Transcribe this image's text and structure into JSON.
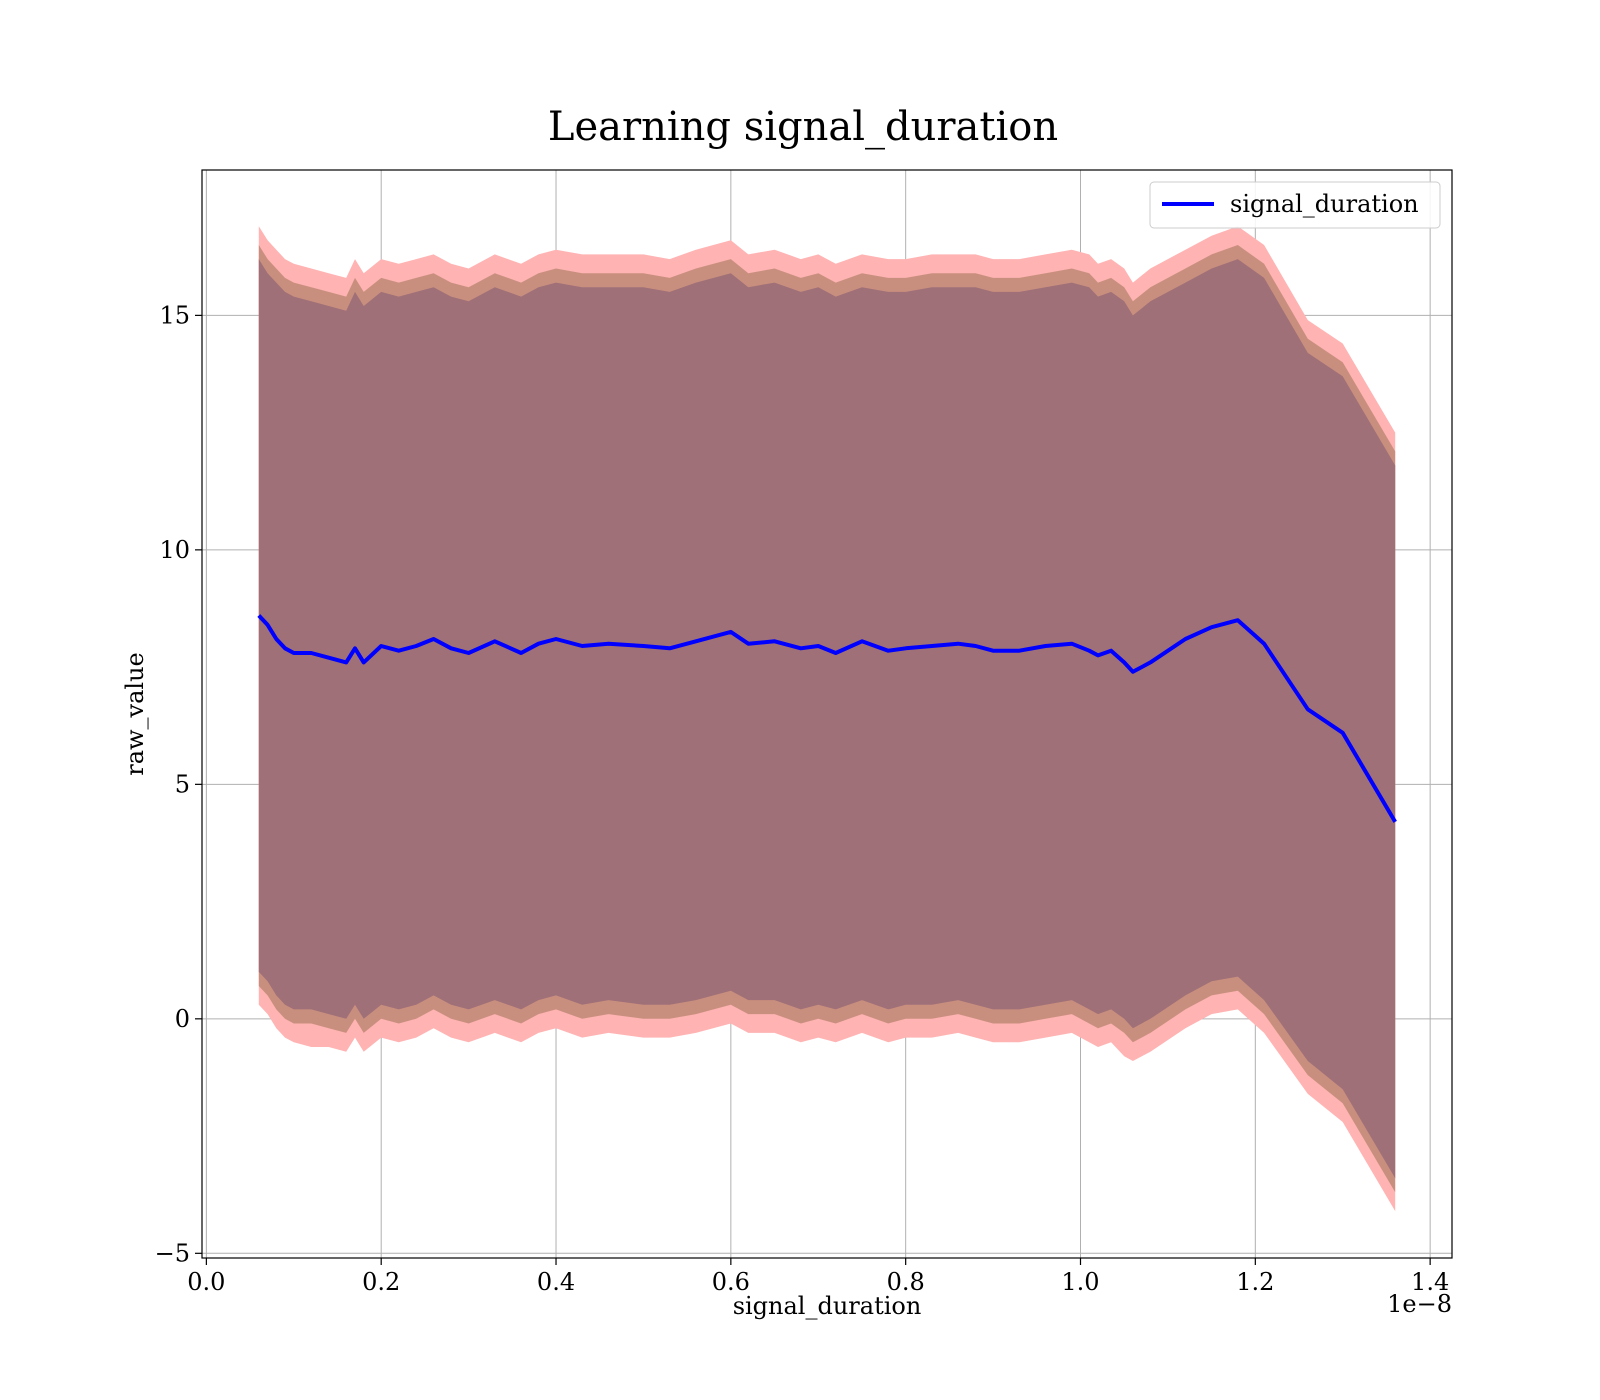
{
  "chart_data": {
    "type": "line",
    "title": "Learning signal_duration",
    "xlabel": "signal_duration",
    "ylabel": "raw_value",
    "x_offset_label": "1e−8",
    "xlim": [
      -0.005,
      1.425
    ],
    "ylim": [
      -5.1,
      18.1
    ],
    "x_ticks": [
      0.0,
      0.2,
      0.4,
      0.6,
      0.8,
      1.0,
      1.2,
      1.4
    ],
    "x_tick_labels": [
      "0.0",
      "0.2",
      "0.4",
      "0.6",
      "0.8",
      "1.0",
      "1.2",
      "1.4"
    ],
    "y_ticks": [
      -5,
      0,
      5,
      10,
      15
    ],
    "y_tick_labels": [
      "−5",
      "0",
      "5",
      "10",
      "15"
    ],
    "grid": true,
    "legend": {
      "position": "top-right",
      "entries": [
        "signal_duration"
      ]
    },
    "colors": {
      "line": "#0000ff",
      "outer_band": "#ffb3b3",
      "middle_band": "#c98f7e",
      "inner_band": "#a07078",
      "grid": "#b0b0b0"
    },
    "x": [
      0.06,
      0.07,
      0.08,
      0.09,
      0.1,
      0.12,
      0.14,
      0.16,
      0.17,
      0.18,
      0.2,
      0.22,
      0.24,
      0.26,
      0.28,
      0.3,
      0.33,
      0.36,
      0.38,
      0.4,
      0.43,
      0.46,
      0.5,
      0.53,
      0.56,
      0.6,
      0.62,
      0.65,
      0.68,
      0.7,
      0.72,
      0.75,
      0.78,
      0.8,
      0.83,
      0.86,
      0.88,
      0.9,
      0.93,
      0.96,
      0.99,
      1.01,
      1.02,
      1.035,
      1.05,
      1.06,
      1.08,
      1.12,
      1.15,
      1.18,
      1.21,
      1.26,
      1.3,
      1.36
    ],
    "series": [
      {
        "name": "signal_duration",
        "y": [
          8.6,
          8.4,
          8.1,
          7.9,
          7.8,
          7.8,
          7.7,
          7.6,
          7.9,
          7.6,
          7.95,
          7.85,
          7.95,
          8.1,
          7.9,
          7.8,
          8.05,
          7.8,
          8.0,
          8.1,
          7.95,
          8.0,
          7.95,
          7.9,
          8.05,
          8.25,
          8.0,
          8.05,
          7.9,
          7.95,
          7.8,
          8.05,
          7.85,
          7.9,
          7.95,
          8.0,
          7.95,
          7.85,
          7.85,
          7.95,
          8.0,
          7.85,
          7.75,
          7.85,
          7.6,
          7.4,
          7.6,
          8.1,
          8.35,
          8.5,
          8.0,
          6.6,
          6.1,
          4.2
        ],
        "band_outer_upper": [
          16.9,
          16.6,
          16.4,
          16.2,
          16.1,
          16.0,
          15.9,
          15.8,
          16.2,
          15.9,
          16.2,
          16.1,
          16.2,
          16.3,
          16.1,
          16.0,
          16.3,
          16.1,
          16.3,
          16.4,
          16.3,
          16.3,
          16.3,
          16.2,
          16.4,
          16.6,
          16.3,
          16.4,
          16.2,
          16.3,
          16.1,
          16.3,
          16.2,
          16.2,
          16.3,
          16.3,
          16.3,
          16.2,
          16.2,
          16.3,
          16.4,
          16.3,
          16.1,
          16.2,
          16.0,
          15.7,
          16.0,
          16.4,
          16.7,
          16.9,
          16.5,
          14.9,
          14.4,
          12.5
        ],
        "band_mid_upper": [
          16.5,
          16.2,
          16.0,
          15.8,
          15.7,
          15.6,
          15.5,
          15.4,
          15.8,
          15.5,
          15.8,
          15.7,
          15.8,
          15.9,
          15.7,
          15.6,
          15.9,
          15.7,
          15.9,
          16.0,
          15.9,
          15.9,
          15.9,
          15.8,
          16.0,
          16.2,
          15.9,
          16.0,
          15.8,
          15.9,
          15.7,
          15.9,
          15.8,
          15.8,
          15.9,
          15.9,
          15.9,
          15.8,
          15.8,
          15.9,
          16.0,
          15.9,
          15.7,
          15.8,
          15.6,
          15.3,
          15.6,
          16.0,
          16.3,
          16.5,
          16.1,
          14.5,
          14.0,
          12.1
        ],
        "band_inner_upper": [
          16.2,
          15.9,
          15.7,
          15.5,
          15.4,
          15.3,
          15.2,
          15.1,
          15.5,
          15.2,
          15.5,
          15.4,
          15.5,
          15.6,
          15.4,
          15.3,
          15.6,
          15.4,
          15.6,
          15.7,
          15.6,
          15.6,
          15.6,
          15.5,
          15.7,
          15.9,
          15.6,
          15.7,
          15.5,
          15.6,
          15.4,
          15.6,
          15.5,
          15.5,
          15.6,
          15.6,
          15.6,
          15.5,
          15.5,
          15.6,
          15.7,
          15.6,
          15.4,
          15.5,
          15.3,
          15.0,
          15.3,
          15.7,
          16.0,
          16.2,
          15.8,
          14.2,
          13.7,
          11.8
        ],
        "band_inner_lower": [
          1.0,
          0.8,
          0.5,
          0.3,
          0.2,
          0.2,
          0.1,
          0.0,
          0.3,
          0.0,
          0.3,
          0.2,
          0.3,
          0.5,
          0.3,
          0.2,
          0.4,
          0.2,
          0.4,
          0.5,
          0.3,
          0.4,
          0.3,
          0.3,
          0.4,
          0.6,
          0.4,
          0.4,
          0.2,
          0.3,
          0.2,
          0.4,
          0.2,
          0.3,
          0.3,
          0.4,
          0.3,
          0.2,
          0.2,
          0.3,
          0.4,
          0.2,
          0.1,
          0.2,
          0.0,
          -0.2,
          0.0,
          0.5,
          0.8,
          0.9,
          0.4,
          -0.9,
          -1.5,
          -3.4
        ],
        "band_mid_lower": [
          0.7,
          0.5,
          0.2,
          0.0,
          -0.1,
          -0.1,
          -0.2,
          -0.3,
          0.0,
          -0.3,
          0.0,
          -0.1,
          0.0,
          0.2,
          0.0,
          -0.1,
          0.1,
          -0.1,
          0.1,
          0.2,
          0.0,
          0.1,
          0.0,
          0.0,
          0.1,
          0.3,
          0.1,
          0.1,
          -0.1,
          0.0,
          -0.1,
          0.1,
          -0.1,
          0.0,
          0.0,
          0.1,
          0.0,
          -0.1,
          -0.1,
          0.0,
          0.1,
          -0.1,
          -0.2,
          -0.1,
          -0.3,
          -0.5,
          -0.3,
          0.2,
          0.5,
          0.6,
          0.1,
          -1.2,
          -1.8,
          -3.7
        ],
        "band_outer_lower": [
          0.3,
          0.1,
          -0.2,
          -0.4,
          -0.5,
          -0.6,
          -0.6,
          -0.7,
          -0.4,
          -0.7,
          -0.4,
          -0.5,
          -0.4,
          -0.2,
          -0.4,
          -0.5,
          -0.3,
          -0.5,
          -0.3,
          -0.2,
          -0.4,
          -0.3,
          -0.4,
          -0.4,
          -0.3,
          -0.1,
          -0.3,
          -0.3,
          -0.5,
          -0.4,
          -0.5,
          -0.3,
          -0.5,
          -0.4,
          -0.4,
          -0.3,
          -0.4,
          -0.5,
          -0.5,
          -0.4,
          -0.3,
          -0.5,
          -0.6,
          -0.5,
          -0.8,
          -0.9,
          -0.7,
          -0.2,
          0.1,
          0.2,
          -0.3,
          -1.6,
          -2.2,
          -4.1
        ]
      }
    ]
  }
}
